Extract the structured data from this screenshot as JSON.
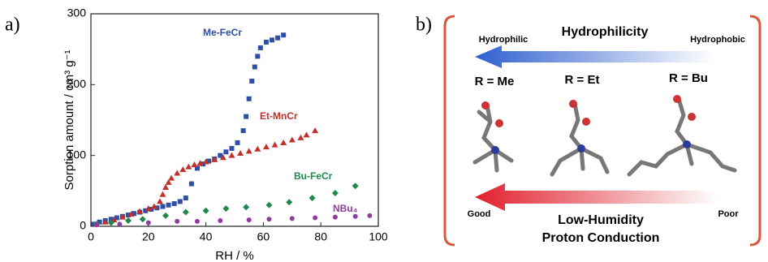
{
  "panel_labels": [
    "a)",
    "b)"
  ],
  "chart_data": {
    "type": "scatter",
    "x_label": "RH / %",
    "y_label": "Sorption amount / cm³ g⁻¹",
    "xlim": [
      0,
      100
    ],
    "ylim": [
      0,
      300
    ],
    "xticks": [
      0,
      20,
      40,
      60,
      80,
      100
    ],
    "yticks": [
      0,
      100,
      200,
      300
    ],
    "series": [
      {
        "name": "Me-FeCr",
        "color": "#2e4fa3",
        "marker": "square",
        "x": [
          1,
          3,
          5,
          7,
          9,
          11,
          13,
          15,
          17,
          19,
          21,
          23,
          25,
          27,
          29,
          31,
          33,
          35,
          37,
          39,
          41,
          43,
          45,
          47,
          49,
          51,
          53,
          54,
          55,
          56,
          57,
          58,
          59,
          61,
          63,
          65,
          67
        ],
        "values": [
          3,
          6,
          8,
          10,
          12,
          14,
          16,
          18,
          20,
          22,
          24,
          26,
          28,
          30,
          32,
          35,
          40,
          60,
          82,
          88,
          92,
          95,
          100,
          105,
          110,
          118,
          135,
          155,
          180,
          205,
          225,
          240,
          252,
          260,
          263,
          266,
          270
        ]
      },
      {
        "name": "Et-MnCr",
        "color": "#c2302b",
        "marker": "triangle",
        "x": [
          2,
          5,
          8,
          11,
          14,
          17,
          20,
          22,
          24,
          25,
          26,
          27,
          28,
          30,
          32,
          34,
          36,
          38,
          40,
          43,
          46,
          49,
          52,
          55,
          58,
          61,
          64,
          67,
          70,
          73,
          75,
          78
        ],
        "values": [
          3,
          6,
          9,
          13,
          17,
          21,
          25,
          28,
          35,
          45,
          55,
          62,
          68,
          75,
          80,
          84,
          87,
          89,
          91,
          94,
          97,
          100,
          103,
          106,
          109,
          112,
          115,
          118,
          122,
          125,
          129,
          135
        ]
      },
      {
        "name": "Bu-FeCr",
        "color": "#1f8a4c",
        "marker": "diamond",
        "x": [
          2,
          7,
          13,
          18,
          26,
          33,
          40,
          47,
          54,
          62,
          69,
          77,
          85,
          92
        ],
        "values": [
          3,
          5,
          8,
          10,
          15,
          20,
          22,
          25,
          27,
          30,
          34,
          40,
          47,
          57
        ]
      },
      {
        "name": "NBu₄",
        "color": "#8e3d9c",
        "marker": "circle",
        "x": [
          2,
          10,
          20,
          30,
          37,
          45,
          55,
          62,
          70,
          78,
          85,
          92,
          97
        ],
        "values": [
          2,
          3,
          5,
          7,
          7,
          8,
          9,
          10,
          11,
          12,
          13,
          14,
          15
        ]
      }
    ]
  },
  "diagram": {
    "title": "Hydrophilicity",
    "left_top": "Hydrophilic",
    "right_top": "Hydrophobic",
    "molecules": [
      "R = Me",
      "R = Et",
      "R = Bu"
    ],
    "left_bottom": "Good",
    "right_bottom": "Poor",
    "bottom_title": [
      "Low-Humidity",
      "Proton Conduction"
    ]
  }
}
